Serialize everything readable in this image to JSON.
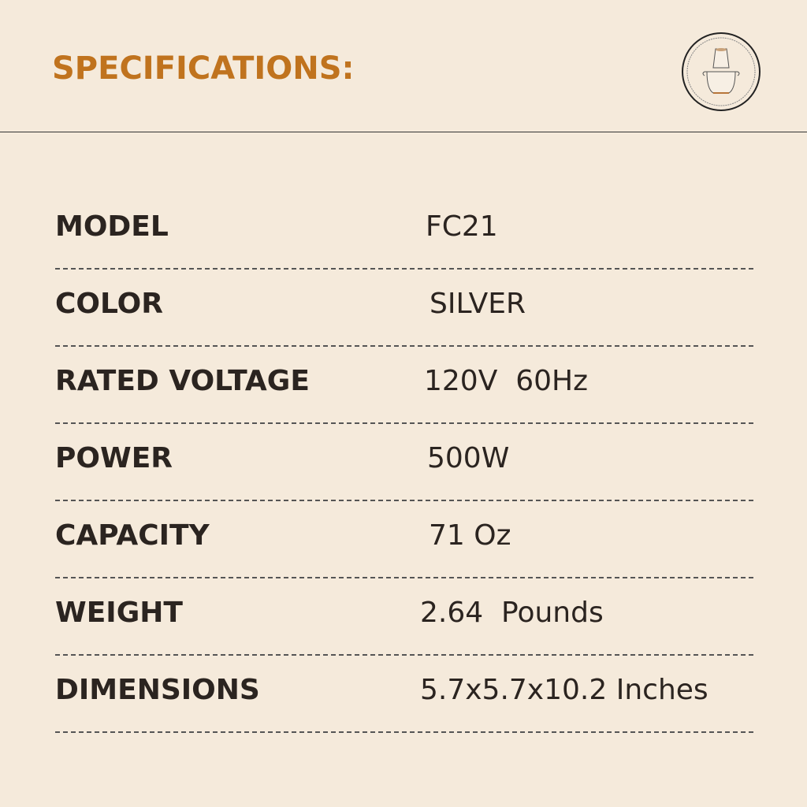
{
  "title": "SPECIFICATIONS:",
  "icon": "food-chopper-icon",
  "colors": {
    "background": "#f5eadb",
    "title": "#c0731e",
    "text": "#2b2420"
  },
  "specs": [
    {
      "label": "MODEL",
      "value": "FC21"
    },
    {
      "label": "COLOR",
      "value": "SILVER"
    },
    {
      "label": "RATED VOLTAGE",
      "value": "120V  60Hz"
    },
    {
      "label": "POWER",
      "value": "500W"
    },
    {
      "label": "CAPACITY",
      "value": "71 Oz"
    },
    {
      "label": "WEIGHT",
      "value": "2.64  Pounds"
    },
    {
      "label": "DIMENSIONS",
      "value": "5.7x5.7x10.2 Inches"
    }
  ]
}
